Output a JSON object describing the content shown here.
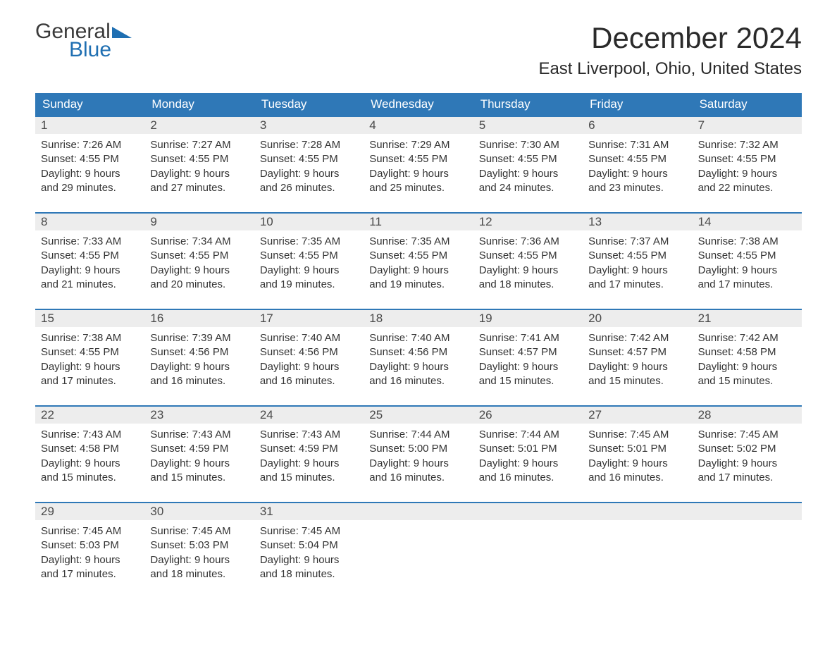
{
  "logo": {
    "word1": "General",
    "word2": "Blue",
    "flag_color": "#1f6fb2"
  },
  "title": "December 2024",
  "location": "East Liverpool, Ohio, United States",
  "colors": {
    "header_bg": "#2f78b7",
    "header_text": "#ffffff",
    "daynum_bg": "#ededed",
    "week_border": "#2f78b7",
    "body_text": "#333333",
    "page_bg": "#ffffff"
  },
  "weekdays": [
    "Sunday",
    "Monday",
    "Tuesday",
    "Wednesday",
    "Thursday",
    "Friday",
    "Saturday"
  ],
  "weeks": [
    [
      {
        "n": "1",
        "sunrise": "Sunrise: 7:26 AM",
        "sunset": "Sunset: 4:55 PM",
        "d1": "Daylight: 9 hours",
        "d2": "and 29 minutes."
      },
      {
        "n": "2",
        "sunrise": "Sunrise: 7:27 AM",
        "sunset": "Sunset: 4:55 PM",
        "d1": "Daylight: 9 hours",
        "d2": "and 27 minutes."
      },
      {
        "n": "3",
        "sunrise": "Sunrise: 7:28 AM",
        "sunset": "Sunset: 4:55 PM",
        "d1": "Daylight: 9 hours",
        "d2": "and 26 minutes."
      },
      {
        "n": "4",
        "sunrise": "Sunrise: 7:29 AM",
        "sunset": "Sunset: 4:55 PM",
        "d1": "Daylight: 9 hours",
        "d2": "and 25 minutes."
      },
      {
        "n": "5",
        "sunrise": "Sunrise: 7:30 AM",
        "sunset": "Sunset: 4:55 PM",
        "d1": "Daylight: 9 hours",
        "d2": "and 24 minutes."
      },
      {
        "n": "6",
        "sunrise": "Sunrise: 7:31 AM",
        "sunset": "Sunset: 4:55 PM",
        "d1": "Daylight: 9 hours",
        "d2": "and 23 minutes."
      },
      {
        "n": "7",
        "sunrise": "Sunrise: 7:32 AM",
        "sunset": "Sunset: 4:55 PM",
        "d1": "Daylight: 9 hours",
        "d2": "and 22 minutes."
      }
    ],
    [
      {
        "n": "8",
        "sunrise": "Sunrise: 7:33 AM",
        "sunset": "Sunset: 4:55 PM",
        "d1": "Daylight: 9 hours",
        "d2": "and 21 minutes."
      },
      {
        "n": "9",
        "sunrise": "Sunrise: 7:34 AM",
        "sunset": "Sunset: 4:55 PM",
        "d1": "Daylight: 9 hours",
        "d2": "and 20 minutes."
      },
      {
        "n": "10",
        "sunrise": "Sunrise: 7:35 AM",
        "sunset": "Sunset: 4:55 PM",
        "d1": "Daylight: 9 hours",
        "d2": "and 19 minutes."
      },
      {
        "n": "11",
        "sunrise": "Sunrise: 7:35 AM",
        "sunset": "Sunset: 4:55 PM",
        "d1": "Daylight: 9 hours",
        "d2": "and 19 minutes."
      },
      {
        "n": "12",
        "sunrise": "Sunrise: 7:36 AM",
        "sunset": "Sunset: 4:55 PM",
        "d1": "Daylight: 9 hours",
        "d2": "and 18 minutes."
      },
      {
        "n": "13",
        "sunrise": "Sunrise: 7:37 AM",
        "sunset": "Sunset: 4:55 PM",
        "d1": "Daylight: 9 hours",
        "d2": "and 17 minutes."
      },
      {
        "n": "14",
        "sunrise": "Sunrise: 7:38 AM",
        "sunset": "Sunset: 4:55 PM",
        "d1": "Daylight: 9 hours",
        "d2": "and 17 minutes."
      }
    ],
    [
      {
        "n": "15",
        "sunrise": "Sunrise: 7:38 AM",
        "sunset": "Sunset: 4:55 PM",
        "d1": "Daylight: 9 hours",
        "d2": "and 17 minutes."
      },
      {
        "n": "16",
        "sunrise": "Sunrise: 7:39 AM",
        "sunset": "Sunset: 4:56 PM",
        "d1": "Daylight: 9 hours",
        "d2": "and 16 minutes."
      },
      {
        "n": "17",
        "sunrise": "Sunrise: 7:40 AM",
        "sunset": "Sunset: 4:56 PM",
        "d1": "Daylight: 9 hours",
        "d2": "and 16 minutes."
      },
      {
        "n": "18",
        "sunrise": "Sunrise: 7:40 AM",
        "sunset": "Sunset: 4:56 PM",
        "d1": "Daylight: 9 hours",
        "d2": "and 16 minutes."
      },
      {
        "n": "19",
        "sunrise": "Sunrise: 7:41 AM",
        "sunset": "Sunset: 4:57 PM",
        "d1": "Daylight: 9 hours",
        "d2": "and 15 minutes."
      },
      {
        "n": "20",
        "sunrise": "Sunrise: 7:42 AM",
        "sunset": "Sunset: 4:57 PM",
        "d1": "Daylight: 9 hours",
        "d2": "and 15 minutes."
      },
      {
        "n": "21",
        "sunrise": "Sunrise: 7:42 AM",
        "sunset": "Sunset: 4:58 PM",
        "d1": "Daylight: 9 hours",
        "d2": "and 15 minutes."
      }
    ],
    [
      {
        "n": "22",
        "sunrise": "Sunrise: 7:43 AM",
        "sunset": "Sunset: 4:58 PM",
        "d1": "Daylight: 9 hours",
        "d2": "and 15 minutes."
      },
      {
        "n": "23",
        "sunrise": "Sunrise: 7:43 AM",
        "sunset": "Sunset: 4:59 PM",
        "d1": "Daylight: 9 hours",
        "d2": "and 15 minutes."
      },
      {
        "n": "24",
        "sunrise": "Sunrise: 7:43 AM",
        "sunset": "Sunset: 4:59 PM",
        "d1": "Daylight: 9 hours",
        "d2": "and 15 minutes."
      },
      {
        "n": "25",
        "sunrise": "Sunrise: 7:44 AM",
        "sunset": "Sunset: 5:00 PM",
        "d1": "Daylight: 9 hours",
        "d2": "and 16 minutes."
      },
      {
        "n": "26",
        "sunrise": "Sunrise: 7:44 AM",
        "sunset": "Sunset: 5:01 PM",
        "d1": "Daylight: 9 hours",
        "d2": "and 16 minutes."
      },
      {
        "n": "27",
        "sunrise": "Sunrise: 7:45 AM",
        "sunset": "Sunset: 5:01 PM",
        "d1": "Daylight: 9 hours",
        "d2": "and 16 minutes."
      },
      {
        "n": "28",
        "sunrise": "Sunrise: 7:45 AM",
        "sunset": "Sunset: 5:02 PM",
        "d1": "Daylight: 9 hours",
        "d2": "and 17 minutes."
      }
    ],
    [
      {
        "n": "29",
        "sunrise": "Sunrise: 7:45 AM",
        "sunset": "Sunset: 5:03 PM",
        "d1": "Daylight: 9 hours",
        "d2": "and 17 minutes."
      },
      {
        "n": "30",
        "sunrise": "Sunrise: 7:45 AM",
        "sunset": "Sunset: 5:03 PM",
        "d1": "Daylight: 9 hours",
        "d2": "and 18 minutes."
      },
      {
        "n": "31",
        "sunrise": "Sunrise: 7:45 AM",
        "sunset": "Sunset: 5:04 PM",
        "d1": "Daylight: 9 hours",
        "d2": "and 18 minutes."
      },
      null,
      null,
      null,
      null
    ]
  ]
}
